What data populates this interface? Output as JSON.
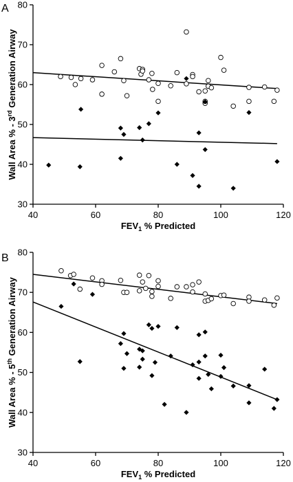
{
  "chart_data": [
    {
      "type": "scatter",
      "panel_label": "A",
      "xlabel_parts": [
        "FEV",
        "1",
        " % Predicted"
      ],
      "ylabel_parts": [
        "Wall Area % - 3",
        "rd",
        " Generation Airway"
      ],
      "xlim": [
        40,
        120
      ],
      "ylim": [
        30,
        80
      ],
      "xticks": [
        40,
        60,
        80,
        100,
        120
      ],
      "yticks": [
        30,
        40,
        50,
        60,
        70,
        80
      ],
      "grid": false,
      "series": [
        {
          "marker": "open-circle",
          "points": [
            [
              48.8,
              62
            ],
            [
              52.2,
              61.8
            ],
            [
              53.5,
              60
            ],
            [
              55.3,
              61.5
            ],
            [
              59,
              61.2
            ],
            [
              62,
              57.6
            ],
            [
              62,
              64.8
            ],
            [
              66,
              63.2
            ],
            [
              68,
              66.5
            ],
            [
              69,
              61
            ],
            [
              70,
              57.2
            ],
            [
              74,
              64
            ],
            [
              74.5,
              62.6
            ],
            [
              75,
              63.8
            ],
            [
              75,
              63.4
            ],
            [
              77,
              61.2
            ],
            [
              78,
              62.8
            ],
            [
              78.2,
              58.8
            ],
            [
              80,
              55.8
            ],
            [
              80,
              60.3
            ],
            [
              84,
              59.7
            ],
            [
              86,
              63
            ],
            [
              89,
              73.2
            ],
            [
              89,
              60.2
            ],
            [
              91,
              62.5
            ],
            [
              91,
              62
            ],
            [
              93,
              58.2
            ],
            [
              95,
              55.3
            ],
            [
              95,
              58.4
            ],
            [
              95,
              55.8
            ],
            [
              96,
              59.6
            ],
            [
              96,
              61
            ],
            [
              97,
              59.2
            ],
            [
              100,
              66.8
            ],
            [
              101,
              63.6
            ],
            [
              104,
              54.6
            ],
            [
              109,
              59.3
            ],
            [
              109,
              55.8
            ],
            [
              114,
              59.4
            ],
            [
              117,
              55.8
            ],
            [
              118,
              58.6
            ]
          ],
          "trend": [
            [
              40,
              63
            ],
            [
              118,
              59
            ]
          ]
        },
        {
          "marker": "filled-diamond",
          "points": [
            [
              45,
              39.8
            ],
            [
              55,
              39.4
            ],
            [
              55.3,
              53.8
            ],
            [
              68,
              41.5
            ],
            [
              68,
              49.1
            ],
            [
              69,
              47.5
            ],
            [
              74,
              49.2
            ],
            [
              75,
              46.1
            ],
            [
              77,
              50.2
            ],
            [
              80,
              52.9
            ],
            [
              86,
              40
            ],
            [
              89,
              61.5
            ],
            [
              91,
              37.2
            ],
            [
              93,
              34.5
            ],
            [
              93,
              47.9
            ],
            [
              95,
              55.7
            ],
            [
              95,
              43.7
            ],
            [
              104,
              34
            ],
            [
              109,
              53
            ],
            [
              118,
              40.7
            ]
          ],
          "trend": [
            [
              40,
              46.7
            ],
            [
              118,
              45.2
            ]
          ]
        }
      ]
    },
    {
      "type": "scatter",
      "panel_label": "B",
      "xlabel_parts": [
        "FEV",
        "1",
        " % Predicted"
      ],
      "ylabel_parts": [
        "Wall Area % - 5",
        "th",
        " Generation Airway"
      ],
      "xlim": [
        40,
        120
      ],
      "ylim": [
        30,
        80
      ],
      "xticks": [
        40,
        60,
        80,
        100,
        120
      ],
      "yticks": [
        30,
        40,
        50,
        60,
        70,
        80
      ],
      "grid": false,
      "series": [
        {
          "marker": "open-circle",
          "points": [
            [
              49,
              75.4
            ],
            [
              52,
              74.2
            ],
            [
              53,
              74.5
            ],
            [
              55,
              70.8
            ],
            [
              59,
              73.6
            ],
            [
              62,
              72.9
            ],
            [
              62,
              72
            ],
            [
              68,
              73
            ],
            [
              69,
              70
            ],
            [
              70,
              70
            ],
            [
              74,
              70.4
            ],
            [
              74,
              74.3
            ],
            [
              75,
              72.6
            ],
            [
              76,
              71
            ],
            [
              77,
              74.2
            ],
            [
              78,
              69
            ],
            [
              78,
              70.2
            ],
            [
              80,
              71.5
            ],
            [
              80,
              72.9
            ],
            [
              84,
              68.5
            ],
            [
              86,
              71.4
            ],
            [
              89,
              71.4
            ],
            [
              91,
              71.9
            ],
            [
              91,
              70.1
            ],
            [
              93,
              72.6
            ],
            [
              95,
              69.6
            ],
            [
              95,
              67.8
            ],
            [
              96,
              68
            ],
            [
              97,
              68.4
            ],
            [
              100,
              69.2
            ],
            [
              101,
              69.3
            ],
            [
              104,
              67.2
            ],
            [
              109,
              68.8
            ],
            [
              109,
              67.8
            ],
            [
              114,
              68.1
            ],
            [
              117,
              66.8
            ],
            [
              118,
              68.6
            ]
          ],
          "trend": [
            [
              40,
              74.5
            ],
            [
              118,
              67.2
            ]
          ]
        },
        {
          "marker": "filled-diamond",
          "points": [
            [
              49,
              66.5
            ],
            [
              53,
              72.1
            ],
            [
              55,
              52.7
            ],
            [
              59,
              69.5
            ],
            [
              68,
              57.2
            ],
            [
              69,
              59.7
            ],
            [
              69,
              51
            ],
            [
              70,
              54.7
            ],
            [
              74,
              51.3
            ],
            [
              74,
              55.8
            ],
            [
              75,
              55.4
            ],
            [
              75,
              53.3
            ],
            [
              77,
              61.9
            ],
            [
              78,
              49.2
            ],
            [
              78,
              61
            ],
            [
              79,
              52.5
            ],
            [
              80,
              61.5
            ],
            [
              82,
              42
            ],
            [
              84,
              54.1
            ],
            [
              86,
              61.2
            ],
            [
              89,
              40
            ],
            [
              91,
              51.9
            ],
            [
              93,
              59.4
            ],
            [
              93,
              52.6
            ],
            [
              93,
              48.5
            ],
            [
              95,
              60.1
            ],
            [
              95,
              54.1
            ],
            [
              96,
              49.5
            ],
            [
              97,
              45.9
            ],
            [
              100,
              54.3
            ],
            [
              100,
              49
            ],
            [
              101,
              51.2
            ],
            [
              104,
              46.6
            ],
            [
              109,
              46.7
            ],
            [
              109,
              42.4
            ],
            [
              114,
              50.8
            ],
            [
              117,
              41
            ],
            [
              118,
              43.2
            ]
          ],
          "trend": [
            [
              40,
              67.6
            ],
            [
              118,
              43.2
            ]
          ]
        }
      ]
    }
  ]
}
